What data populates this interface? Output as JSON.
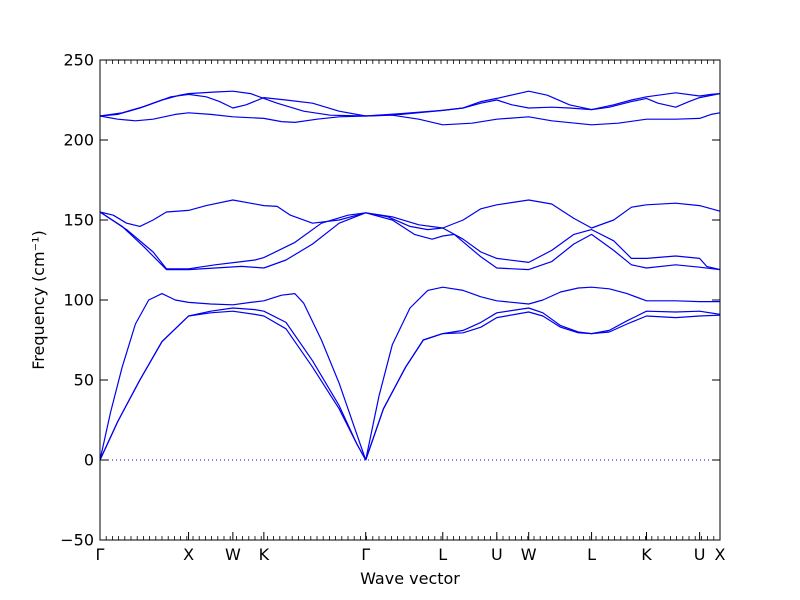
{
  "chart_data": {
    "type": "line",
    "title": "",
    "xlabel": "Wave vector",
    "ylabel": "Frequency (cm⁻¹)",
    "ylim": [
      -50,
      250
    ],
    "y_ticks": [
      -50,
      0,
      50,
      100,
      150,
      200,
      250
    ],
    "line_color": "#0000ee",
    "zero_line_color": "#0000ee",
    "x_labels": [
      "Γ",
      "X",
      "W",
      "K",
      "Γ",
      "L",
      "U",
      "W",
      "L",
      "K",
      "U",
      "X"
    ],
    "x_label_positions": [
      0,
      1,
      1.5,
      1.85,
      3.0,
      3.87,
      4.48,
      4.84,
      5.55,
      6.17,
      6.77,
      7.0
    ],
    "x_range": [
      0,
      7.0
    ],
    "series": [
      {
        "points": [
          [
            0,
            0
          ],
          [
            0.12,
            30
          ],
          [
            0.25,
            58
          ],
          [
            0.4,
            85
          ],
          [
            0.55,
            100
          ],
          [
            0.7,
            104
          ],
          [
            0.85,
            100
          ],
          [
            1.0,
            98.5
          ],
          [
            1.25,
            97.5
          ],
          [
            1.5,
            97
          ],
          [
            1.7,
            98.5
          ],
          [
            1.85,
            99.5
          ],
          [
            2.05,
            103
          ],
          [
            2.2,
            104
          ],
          [
            2.3,
            98
          ],
          [
            2.5,
            75
          ],
          [
            2.7,
            48
          ],
          [
            2.9,
            16
          ],
          [
            3.0,
            0
          ]
        ]
      },
      {
        "points": [
          [
            0,
            0
          ],
          [
            0.2,
            24
          ],
          [
            0.45,
            50
          ],
          [
            0.7,
            74
          ],
          [
            1.0,
            90
          ],
          [
            1.25,
            92
          ],
          [
            1.5,
            93
          ],
          [
            1.75,
            91
          ],
          [
            1.85,
            90
          ],
          [
            2.1,
            82
          ],
          [
            2.4,
            58
          ],
          [
            2.7,
            32
          ],
          [
            2.9,
            10
          ],
          [
            3.0,
            0
          ]
        ]
      },
      {
        "points": [
          [
            0,
            0
          ],
          [
            0.2,
            24
          ],
          [
            0.45,
            50
          ],
          [
            0.7,
            74
          ],
          [
            1.0,
            90
          ],
          [
            1.25,
            93
          ],
          [
            1.5,
            95
          ],
          [
            1.75,
            94
          ],
          [
            1.85,
            93
          ],
          [
            2.1,
            86
          ],
          [
            2.4,
            62
          ],
          [
            2.7,
            34
          ],
          [
            2.9,
            10
          ],
          [
            3.0,
            0
          ]
        ]
      },
      {
        "points": [
          [
            3.0,
            0
          ],
          [
            3.15,
            40
          ],
          [
            3.3,
            72
          ],
          [
            3.5,
            95
          ],
          [
            3.7,
            106
          ],
          [
            3.87,
            108
          ],
          [
            4.1,
            106
          ],
          [
            4.3,
            102
          ],
          [
            4.48,
            99.5
          ],
          [
            4.84,
            97.5
          ],
          [
            5.0,
            100
          ],
          [
            5.2,
            105
          ],
          [
            5.4,
            107.5
          ],
          [
            5.55,
            108
          ],
          [
            5.75,
            107
          ],
          [
            5.95,
            104
          ],
          [
            6.17,
            99.5
          ],
          [
            6.5,
            99.5
          ],
          [
            6.77,
            99
          ],
          [
            7.0,
            99
          ]
        ]
      },
      {
        "points": [
          [
            3.0,
            0
          ],
          [
            3.2,
            32
          ],
          [
            3.45,
            58
          ],
          [
            3.65,
            75
          ],
          [
            3.87,
            79
          ],
          [
            4.1,
            81
          ],
          [
            4.3,
            86
          ],
          [
            4.48,
            92
          ],
          [
            4.84,
            95
          ],
          [
            5.0,
            92
          ],
          [
            5.2,
            84
          ],
          [
            5.4,
            80
          ],
          [
            5.55,
            79
          ],
          [
            5.75,
            81
          ],
          [
            5.95,
            87
          ],
          [
            6.17,
            93
          ],
          [
            6.5,
            92.5
          ],
          [
            6.77,
            93
          ],
          [
            7.0,
            91
          ]
        ]
      },
      {
        "points": [
          [
            3.0,
            0
          ],
          [
            3.2,
            32
          ],
          [
            3.45,
            58
          ],
          [
            3.65,
            75
          ],
          [
            3.87,
            79
          ],
          [
            4.1,
            79.5
          ],
          [
            4.3,
            83
          ],
          [
            4.48,
            89
          ],
          [
            4.84,
            92.5
          ],
          [
            5.0,
            90
          ],
          [
            5.2,
            83
          ],
          [
            5.4,
            79.5
          ],
          [
            5.55,
            79
          ],
          [
            5.75,
            80
          ],
          [
            5.95,
            85
          ],
          [
            6.17,
            90
          ],
          [
            6.5,
            89
          ],
          [
            6.77,
            90
          ],
          [
            7.0,
            90.5
          ]
        ]
      },
      {
        "points": [
          [
            0,
            155
          ],
          [
            0.15,
            153
          ],
          [
            0.3,
            148
          ],
          [
            0.45,
            146
          ],
          [
            0.6,
            150
          ],
          [
            0.75,
            155
          ],
          [
            1.0,
            156
          ],
          [
            1.2,
            159
          ],
          [
            1.5,
            162.5
          ],
          [
            1.7,
            160.5
          ],
          [
            1.85,
            159
          ],
          [
            2.0,
            158.5
          ],
          [
            2.15,
            153
          ],
          [
            2.4,
            148
          ],
          [
            2.7,
            150
          ],
          [
            3.0,
            154.5
          ],
          [
            3.3,
            152
          ],
          [
            3.6,
            147
          ],
          [
            3.87,
            145
          ],
          [
            4.1,
            150
          ],
          [
            4.3,
            157
          ],
          [
            4.48,
            159.5
          ],
          [
            4.84,
            162.5
          ],
          [
            5.1,
            160
          ],
          [
            5.35,
            151
          ],
          [
            5.55,
            145
          ],
          [
            5.8,
            150
          ],
          [
            6.0,
            158
          ],
          [
            6.17,
            159.5
          ],
          [
            6.5,
            160.5
          ],
          [
            6.77,
            159
          ],
          [
            7.0,
            155.5
          ]
        ]
      },
      {
        "points": [
          [
            0,
            155
          ],
          [
            0.25,
            146
          ],
          [
            0.5,
            133
          ],
          [
            0.75,
            119
          ],
          [
            1.0,
            119
          ],
          [
            1.3,
            120
          ],
          [
            1.6,
            121
          ],
          [
            1.85,
            120
          ],
          [
            2.1,
            125
          ],
          [
            2.4,
            135
          ],
          [
            2.7,
            148
          ],
          [
            3.0,
            154.5
          ],
          [
            3.25,
            152
          ],
          [
            3.5,
            146
          ],
          [
            3.7,
            144
          ],
          [
            3.87,
            145
          ],
          [
            4.1,
            138
          ],
          [
            4.3,
            130
          ],
          [
            4.48,
            126
          ],
          [
            4.84,
            123.5
          ],
          [
            5.1,
            131
          ],
          [
            5.35,
            141
          ],
          [
            5.55,
            144
          ],
          [
            5.8,
            137
          ],
          [
            6.0,
            126
          ],
          [
            6.17,
            126
          ],
          [
            6.5,
            127.5
          ],
          [
            6.77,
            126
          ],
          [
            6.85,
            121
          ],
          [
            7.0,
            119
          ]
        ]
      },
      {
        "points": [
          [
            0,
            155
          ],
          [
            0.3,
            144
          ],
          [
            0.6,
            130
          ],
          [
            0.75,
            119.5
          ],
          [
            1.0,
            119.5
          ],
          [
            1.3,
            122
          ],
          [
            1.6,
            124
          ],
          [
            1.75,
            125
          ],
          [
            1.85,
            126.5
          ],
          [
            2.2,
            136
          ],
          [
            2.5,
            148
          ],
          [
            2.8,
            153
          ],
          [
            3.0,
            154.5
          ],
          [
            3.3,
            150
          ],
          [
            3.55,
            141
          ],
          [
            3.75,
            138
          ],
          [
            3.87,
            140
          ],
          [
            4.0,
            141
          ],
          [
            4.3,
            127
          ],
          [
            4.48,
            120
          ],
          [
            4.84,
            119
          ],
          [
            5.1,
            124
          ],
          [
            5.35,
            135
          ],
          [
            5.55,
            141
          ],
          [
            5.8,
            131
          ],
          [
            6.0,
            122
          ],
          [
            6.17,
            120
          ],
          [
            6.5,
            122
          ],
          [
            6.77,
            120.5
          ],
          [
            7.0,
            119
          ]
        ]
      },
      {
        "points": [
          [
            0,
            215
          ],
          [
            0.2,
            216
          ],
          [
            0.45,
            220
          ],
          [
            0.7,
            225
          ],
          [
            0.9,
            228
          ],
          [
            1.0,
            229
          ],
          [
            1.3,
            230
          ],
          [
            1.5,
            230.5
          ],
          [
            1.7,
            229
          ],
          [
            1.85,
            226
          ],
          [
            2.0,
            223
          ],
          [
            2.3,
            218
          ],
          [
            2.6,
            215.5
          ],
          [
            3.0,
            215
          ],
          [
            3.4,
            216
          ],
          [
            3.87,
            218.5
          ],
          [
            4.1,
            220
          ],
          [
            4.3,
            224
          ],
          [
            4.48,
            226
          ],
          [
            4.84,
            230.5
          ],
          [
            5.05,
            228
          ],
          [
            5.3,
            222
          ],
          [
            5.55,
            219
          ],
          [
            5.8,
            222
          ],
          [
            6.0,
            225
          ],
          [
            6.17,
            227
          ],
          [
            6.5,
            229.5
          ],
          [
            6.77,
            227.5
          ],
          [
            6.9,
            228.5
          ],
          [
            7.0,
            229
          ]
        ]
      },
      {
        "points": [
          [
            0,
            215
          ],
          [
            0.25,
            217
          ],
          [
            0.5,
            221
          ],
          [
            0.8,
            227
          ],
          [
            1.0,
            228.5
          ],
          [
            1.2,
            227
          ],
          [
            1.35,
            224
          ],
          [
            1.5,
            220
          ],
          [
            1.65,
            222
          ],
          [
            1.85,
            226.5
          ],
          [
            2.1,
            225
          ],
          [
            2.4,
            223
          ],
          [
            2.7,
            218
          ],
          [
            3.0,
            215
          ],
          [
            3.4,
            216.5
          ],
          [
            3.87,
            218.5
          ],
          [
            4.1,
            220
          ],
          [
            4.3,
            223
          ],
          [
            4.48,
            225
          ],
          [
            4.65,
            222
          ],
          [
            4.84,
            220
          ],
          [
            5.1,
            220.5
          ],
          [
            5.3,
            220
          ],
          [
            5.55,
            219
          ],
          [
            5.75,
            220.5
          ],
          [
            6.0,
            224
          ],
          [
            6.17,
            226
          ],
          [
            6.3,
            223
          ],
          [
            6.5,
            220.5
          ],
          [
            6.65,
            224
          ],
          [
            6.77,
            226.5
          ],
          [
            7.0,
            229
          ]
        ]
      },
      {
        "points": [
          [
            0,
            215
          ],
          [
            0.2,
            213
          ],
          [
            0.4,
            212
          ],
          [
            0.6,
            213
          ],
          [
            0.85,
            216
          ],
          [
            1.0,
            217
          ],
          [
            1.25,
            216
          ],
          [
            1.5,
            214.5
          ],
          [
            1.85,
            213.5
          ],
          [
            2.05,
            211.5
          ],
          [
            2.2,
            211
          ],
          [
            2.45,
            213
          ],
          [
            2.7,
            214.5
          ],
          [
            3.0,
            215
          ],
          [
            3.3,
            215.5
          ],
          [
            3.6,
            213
          ],
          [
            3.87,
            209.5
          ],
          [
            4.2,
            210.5
          ],
          [
            4.48,
            213
          ],
          [
            4.84,
            214.5
          ],
          [
            5.1,
            212
          ],
          [
            5.55,
            209.5
          ],
          [
            5.85,
            210.5
          ],
          [
            6.17,
            213
          ],
          [
            6.5,
            213
          ],
          [
            6.77,
            213.5
          ],
          [
            6.9,
            216
          ],
          [
            7.0,
            217
          ]
        ]
      }
    ]
  }
}
